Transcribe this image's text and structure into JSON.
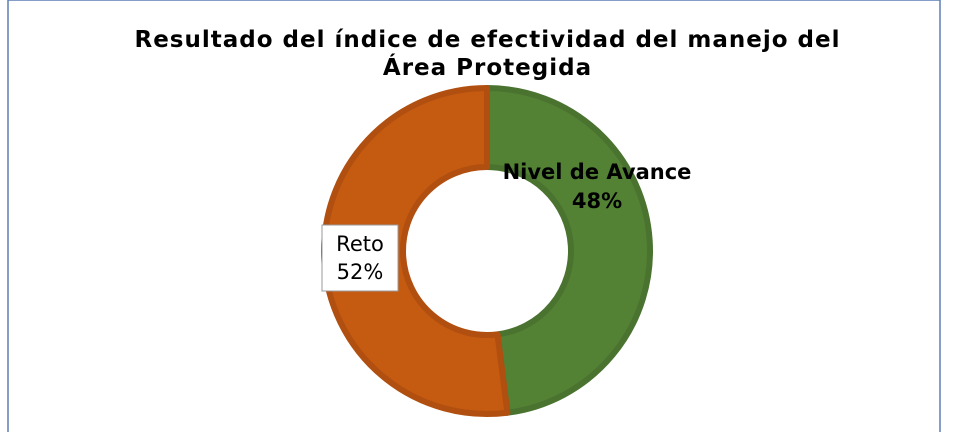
{
  "chart_data": {
    "type": "donut",
    "title": "Resultado del índice de efectividad del manejo del Área Protegida",
    "categories": [
      "Nivel de Avance",
      "Reto"
    ],
    "values": [
      48,
      52
    ],
    "value_labels": [
      "48%",
      "52%"
    ],
    "colors": [
      "#548235",
      "#c55a11"
    ]
  }
}
